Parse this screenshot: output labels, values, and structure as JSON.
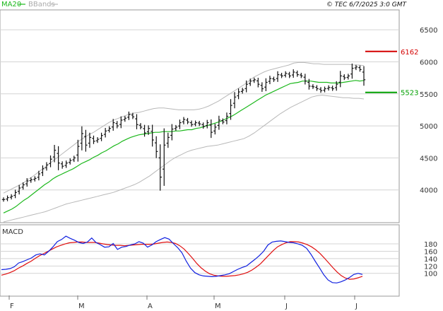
{
  "header": {
    "legend_ma": "MA20",
    "legend_bb": "BBands",
    "copyright": "© TEC 6/7/2025 3:0 GMT"
  },
  "colors": {
    "ma": "#1cb81c",
    "bbands": "#b8b8b8",
    "bars": "#111111",
    "resistance": "#d40000",
    "support": "#00a000",
    "macd": "#1020e0",
    "signal": "#e01010"
  },
  "chart_data": [
    {
      "type": "ohlc",
      "panel": "price",
      "ylim": [
        3500,
        6800
      ],
      "y_ticks": [
        4000,
        4500,
        5000,
        5500,
        6000,
        6500
      ],
      "y_tick_labels": [
        "4000",
        "4500",
        "5000",
        "5500",
        "6000",
        "6500"
      ],
      "x_labels": [
        "F",
        "M",
        "A",
        "M",
        "J",
        "J"
      ],
      "levels": [
        {
          "label": "6162",
          "value": 6162,
          "color_key": "resistance"
        },
        {
          "label": "5523",
          "value": 5523,
          "color_key": "support"
        }
      ],
      "close": [
        3850,
        3880,
        3900,
        3960,
        4030,
        4080,
        4140,
        4160,
        4180,
        4250,
        4330,
        4390,
        4480,
        4620,
        4420,
        4370,
        4420,
        4460,
        4500,
        4680,
        4880,
        4700,
        4820,
        4760,
        4790,
        4850,
        4920,
        4960,
        5050,
        5000,
        5090,
        5120,
        5180,
        5140,
        5020,
        4980,
        4890,
        4960,
        4780,
        4600,
        4200,
        4700,
        4820,
        4950,
        4980,
        5050,
        5100,
        5060,
        5020,
        5050,
        5030,
        4990,
        5050,
        4900,
        4980,
        5090,
        5060,
        5150,
        5320,
        5450,
        5530,
        5560,
        5650,
        5700,
        5720,
        5650,
        5580,
        5680,
        5740,
        5720,
        5800,
        5780,
        5820,
        5780,
        5840,
        5800,
        5780,
        5700,
        5620,
        5610,
        5580,
        5550,
        5580,
        5600,
        5580,
        5650,
        5780,
        5750,
        5780,
        5900,
        5920,
        5880,
        5720
      ],
      "ma20": [
        3640,
        3670,
        3700,
        3740,
        3790,
        3840,
        3880,
        3930,
        3980,
        4030,
        4080,
        4120,
        4170,
        4210,
        4240,
        4270,
        4300,
        4330,
        4370,
        4410,
        4440,
        4470,
        4510,
        4540,
        4580,
        4610,
        4650,
        4690,
        4720,
        4760,
        4790,
        4820,
        4840,
        4860,
        4870,
        4880,
        4890,
        4900,
        4900,
        4910,
        4910,
        4910,
        4920,
        4920,
        4930,
        4940,
        4940,
        4960,
        4970,
        4990,
        5010,
        5030,
        5050,
        5070,
        5100,
        5130,
        5160,
        5200,
        5240,
        5280,
        5320,
        5360,
        5400,
        5440,
        5480,
        5510,
        5540,
        5570,
        5600,
        5630,
        5660,
        5670,
        5680,
        5700,
        5700,
        5700,
        5690,
        5680,
        5680,
        5680,
        5670,
        5670,
        5670,
        5680,
        5690,
        5700,
        5710,
        5700,
        5710
      ],
      "bb_upper": [
        3950,
        3990,
        4030,
        4070,
        4110,
        4170,
        4220,
        4280,
        4340,
        4400,
        4460,
        4520,
        4580,
        4640,
        4700,
        4760,
        4810,
        4860,
        4900,
        4950,
        5000,
        5050,
        5090,
        5120,
        5150,
        5180,
        5200,
        5210,
        5230,
        5250,
        5270,
        5280,
        5280,
        5270,
        5260,
        5250,
        5250,
        5250,
        5250,
        5260,
        5280,
        5310,
        5350,
        5390,
        5440,
        5490,
        5540,
        5590,
        5640,
        5700,
        5760,
        5800,
        5840,
        5870,
        5890,
        5910,
        5930,
        5950,
        5980,
        5990,
        5990,
        5980,
        5970,
        5970,
        5960,
        5960,
        5960,
        5960,
        5960,
        5960,
        5950,
        5950,
        5940
      ],
      "bb_lower": [
        3500,
        3520,
        3540,
        3560,
        3580,
        3600,
        3620,
        3640,
        3660,
        3690,
        3720,
        3750,
        3780,
        3800,
        3820,
        3840,
        3860,
        3880,
        3900,
        3920,
        3940,
        3960,
        3990,
        4020,
        4050,
        4080,
        4120,
        4170,
        4220,
        4280,
        4340,
        4400,
        4460,
        4510,
        4550,
        4590,
        4620,
        4640,
        4660,
        4680,
        4690,
        4700,
        4720,
        4740,
        4760,
        4780,
        4800,
        4840,
        4890,
        4950,
        5010,
        5070,
        5130,
        5190,
        5240,
        5290,
        5330,
        5370,
        5410,
        5450,
        5470,
        5480,
        5470,
        5460,
        5450,
        5440,
        5440,
        5430,
        5430,
        5420
      ],
      "series": [
        {
          "name": "MA20",
          "key": "ma20"
        },
        {
          "name": "BBands",
          "key": "bb_upper"
        },
        {
          "name": "BBands",
          "key": "bb_lower"
        }
      ]
    },
    {
      "type": "line",
      "panel": "macd",
      "title": "MACD",
      "ylim": [
        40,
        230
      ],
      "y_ticks": [
        100,
        120,
        140,
        160,
        180
      ],
      "y_tick_labels": [
        "100",
        "120",
        "140",
        "160",
        "180"
      ],
      "series": [
        {
          "key": "macd",
          "values": [
            110,
            111,
            113,
            118,
            128,
            132,
            137,
            142,
            150,
            153,
            150,
            160,
            172,
            186,
            192,
            201,
            195,
            190,
            184,
            181,
            185,
            196,
            184,
            178,
            171,
            172,
            181,
            165,
            171,
            173,
            177,
            180,
            186,
            182,
            171,
            177,
            186,
            192,
            197,
            193,
            181,
            170,
            156,
            133,
            114,
            102,
            96,
            93,
            92,
            91,
            92,
            94,
            96,
            99,
            105,
            111,
            116,
            120,
            129,
            138,
            148,
            160,
            177,
            185,
            187,
            188,
            186,
            184,
            183,
            180,
            176,
            168,
            152,
            133,
            115,
            96,
            82,
            75,
            74,
            77,
            82,
            89,
            97,
            100,
            97
          ]
        },
        {
          "key": "signal",
          "values": [
            95,
            98,
            102,
            107,
            114,
            120,
            127,
            133,
            141,
            148,
            154,
            160,
            166,
            172,
            176,
            180,
            183,
            184,
            185,
            185,
            184,
            184,
            184,
            182,
            180,
            178,
            177,
            176,
            176,
            175,
            176,
            177,
            178,
            179,
            179,
            179,
            180,
            182,
            184,
            185,
            184,
            181,
            175,
            166,
            154,
            141,
            127,
            115,
            106,
            99,
            95,
            93,
            92,
            92,
            93,
            94,
            96,
            99,
            103,
            109,
            117,
            126,
            138,
            150,
            162,
            172,
            178,
            183,
            186,
            186,
            185,
            182,
            178,
            172,
            164,
            154,
            142,
            129,
            116,
            104,
            94,
            87,
            84,
            85,
            88,
            92
          ]
        }
      ]
    }
  ]
}
